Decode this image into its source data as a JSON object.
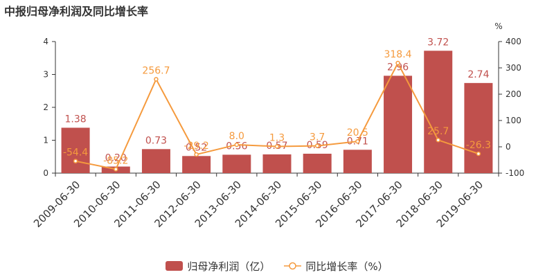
{
  "chart_data": {
    "type": "bar",
    "title": "中报归母净利润及同比增长率",
    "categories": [
      "2009-06-30",
      "2010-06-30",
      "2011-06-30",
      "2012-06-30",
      "2013-06-30",
      "2014-06-30",
      "2015-06-30",
      "2016-06-30",
      "2017-06-30",
      "2018-06-30",
      "2019-06-30"
    ],
    "series": [
      {
        "name": "归母净利润（亿）",
        "type": "bar",
        "axis": "left",
        "color": "#c0504d",
        "values": [
          1.38,
          0.2,
          0.73,
          0.52,
          0.56,
          0.57,
          0.59,
          0.71,
          2.96,
          3.72,
          2.74
        ],
        "labels": [
          "1.38",
          "0.20",
          "0.73",
          "0.52",
          "0.56",
          "0.57",
          "0.59",
          "0.71",
          "2.96",
          "3.72",
          "2.74"
        ]
      },
      {
        "name": "同比增长率（%）",
        "type": "line",
        "axis": "right",
        "color": "#f59a3d",
        "values": [
          -54.4,
          -85.2,
          256.7,
          -29.2,
          8.0,
          1.3,
          3.7,
          20.5,
          318.4,
          25.7,
          -26.3
        ],
        "labels": [
          "-54.4",
          "-85.2",
          "256.7",
          "-29.2",
          "8.0",
          "1.3",
          "3.7",
          "20.5",
          "318.4",
          "25.7",
          "-26.3"
        ]
      }
    ],
    "y_left": {
      "min": 0,
      "max": 4,
      "ticks": [
        "0",
        "1",
        "2",
        "3",
        "4"
      ]
    },
    "y_right": {
      "label": "%",
      "min": -100,
      "max": 400,
      "ticks": [
        "-100",
        "0",
        "100",
        "200",
        "300",
        "400"
      ]
    },
    "legend_position": "bottom",
    "grid": false
  }
}
